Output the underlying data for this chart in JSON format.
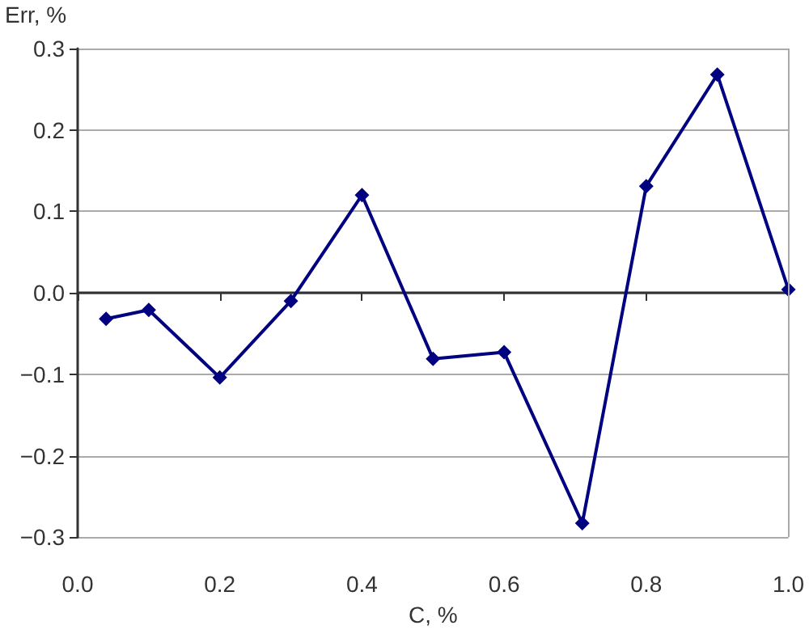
{
  "chart_data": {
    "type": "line",
    "xlabel": "C, %",
    "ylabel": "Err, %",
    "x": [
      0.04,
      0.1,
      0.2,
      0.3,
      0.4,
      0.5,
      0.6,
      0.71,
      0.8,
      0.9,
      1.0
    ],
    "series": [
      {
        "color": "#000080",
        "values": [
          -0.032,
          -0.021,
          -0.104,
          -0.01,
          0.12,
          -0.081,
          -0.073,
          -0.283,
          0.131,
          0.268,
          0.004
        ]
      }
    ],
    "xlim": [
      0,
      1
    ],
    "xticks": [
      "0.0",
      0.2,
      0.4,
      0.6,
      0.8,
      "1.0"
    ],
    "ylim": [
      -0.3,
      0.3
    ],
    "yticks": [
      -0.3,
      -0.2,
      -0.1,
      "0.0",
      0.1,
      0.2,
      0.3
    ],
    "grid": "y",
    "marker": "diamond",
    "line_style": "solid"
  }
}
